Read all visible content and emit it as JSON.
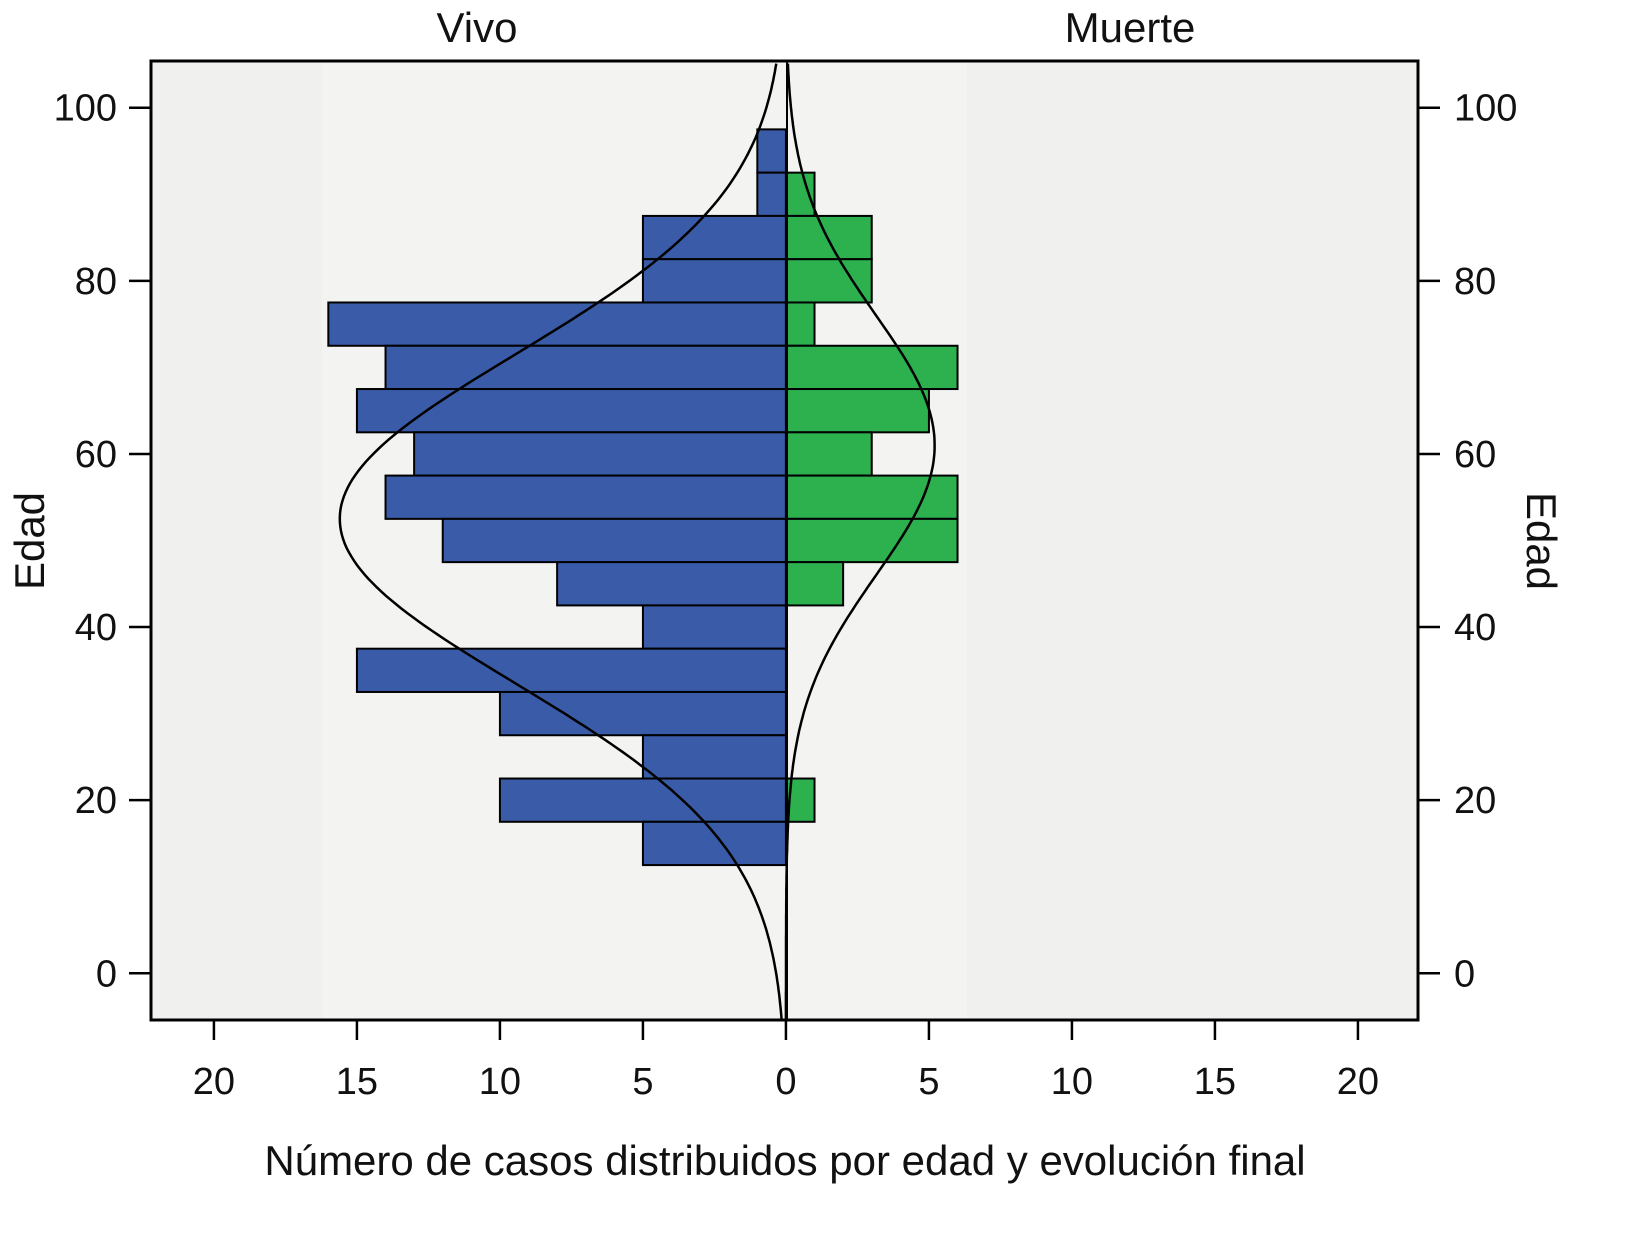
{
  "chart_data": {
    "type": "bar",
    "orientation": "horizontal-back-to-back",
    "title": "",
    "panels": [
      "Vivo",
      "Muerte"
    ],
    "xlabel": "Número de casos distribuidos por edad y evolución final",
    "ylabel_left": "Edad",
    "ylabel_right": "Edad",
    "xlim": [
      -22.2,
      22.1
    ],
    "ylim": [
      -5.4,
      105.4
    ],
    "x_ticks": [
      20,
      15,
      10,
      5,
      0,
      5,
      10,
      15,
      20
    ],
    "x_tick_values": [
      -20,
      -15,
      -10,
      -5,
      0,
      5,
      10,
      15,
      20
    ],
    "y_ticks": [
      0,
      20,
      40,
      60,
      80,
      100
    ],
    "bin_width": 5,
    "series": [
      {
        "name": "Vivo",
        "color": "#3a5ca8",
        "bin_centers": [
          95,
          90,
          85,
          80,
          75,
          70,
          65,
          60,
          55,
          50,
          45,
          40,
          35,
          30,
          25,
          20,
          15
        ],
        "values": [
          1,
          1,
          5,
          5,
          16,
          14,
          15,
          13,
          14,
          12,
          8,
          5,
          15,
          10,
          5,
          10,
          5
        ],
        "normal_curve": {
          "mean": 52.5,
          "sd": 19,
          "peak": 15.6
        }
      },
      {
        "name": "Muerte",
        "color": "#2db04e",
        "bin_centers": [
          90,
          85,
          80,
          75,
          70,
          65,
          60,
          55,
          50,
          45,
          20
        ],
        "values": [
          1,
          3,
          3,
          1,
          6,
          5,
          3,
          6,
          6,
          2,
          1
        ],
        "normal_curve": {
          "mean": 61,
          "sd": 15,
          "peak": 5.2
        }
      }
    ],
    "grid": false
  }
}
